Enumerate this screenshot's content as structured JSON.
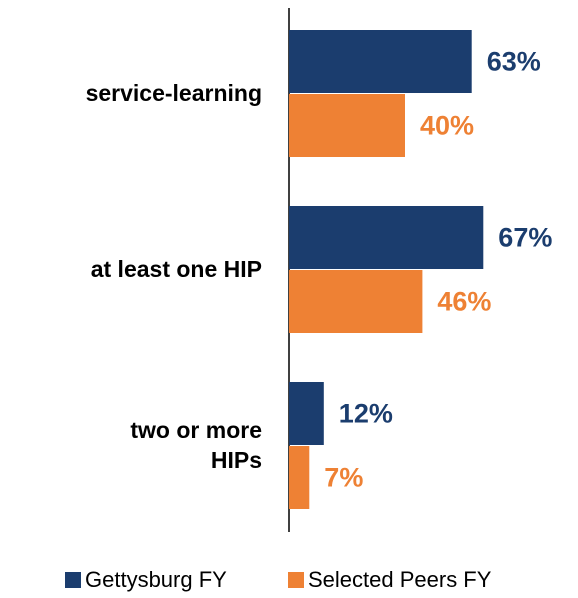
{
  "chart_data": {
    "type": "hbar",
    "categories": [
      "service-learning",
      "at least one HIP",
      "two or more\nHIPs"
    ],
    "series": [
      {
        "name": "Gettysburg FY",
        "color": "#1b3d6e",
        "values": [
          63,
          67,
          12
        ],
        "value_labels": [
          "63%",
          "67%",
          "12%"
        ]
      },
      {
        "name": "Selected Peers FY",
        "color": "#ee8134",
        "values": [
          40,
          46,
          7
        ],
        "value_labels": [
          "40%",
          "46%",
          "7%"
        ]
      }
    ],
    "legend": "bottom"
  }
}
